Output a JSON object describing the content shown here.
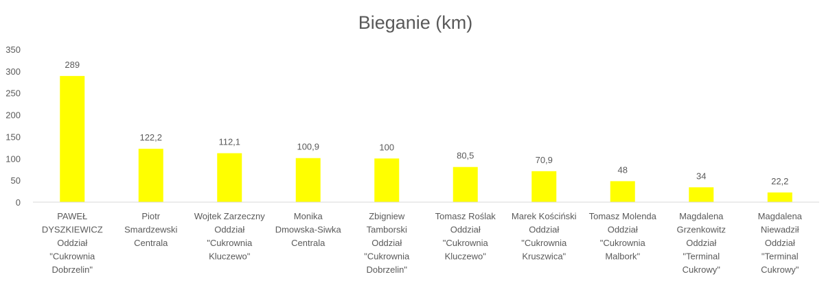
{
  "chart_data": {
    "type": "bar",
    "title": "Bieganie (km)",
    "xlabel": "",
    "ylabel": "",
    "ylim": [
      0,
      350
    ],
    "yticks": [
      0,
      50,
      100,
      150,
      200,
      250,
      300,
      350
    ],
    "grid": false,
    "legend": "none",
    "bar_color": "#FFFF00",
    "categories": [
      "PAWEŁ DYSZKIEWICZ Oddział \"Cukrownia Dobrzelin\"",
      "Piotr Smardzewski Centrala",
      "Wojtek Zarzeczny Oddział \"Cukrownia Kluczewo\"",
      "Monika Dmowska-Siwka Centrala",
      "Zbigniew Tamborski Oddział \"Cukrownia Dobrzelin\"",
      "Tomasz Roślak Oddział \"Cukrownia Kluczewo\"",
      "Marek Kościński Oddział \"Cukrownia Kruszwica\"",
      "Tomasz Molenda Oddział \"Cukrownia Malbork\"",
      "Magdalena Grzenkowitz Oddział \"Terminal Cukrowy\"",
      "Magdalena Niewadził Oddział \"Terminal Cukrowy\""
    ],
    "category_lines": [
      [
        "PAWEŁ",
        "DYSZKIEWICZ",
        "Oddział",
        "\"Cukrownia",
        "Dobrzelin\""
      ],
      [
        "Piotr",
        "Smardzewski",
        "Centrala"
      ],
      [
        "Wojtek Zarzeczny",
        "Oddział",
        "\"Cukrownia",
        "Kluczewo\""
      ],
      [
        "Monika",
        "Dmowska-Siwka",
        "Centrala"
      ],
      [
        "Zbigniew",
        "Tamborski",
        "Oddział",
        "\"Cukrownia",
        "Dobrzelin\""
      ],
      [
        "Tomasz Roślak",
        "Oddział",
        "\"Cukrownia",
        "Kluczewo\""
      ],
      [
        "Marek Kościński",
        "Oddział",
        "\"Cukrownia",
        "Kruszwica\""
      ],
      [
        "Tomasz Molenda",
        "Oddział",
        "\"Cukrownia",
        "Malbork\""
      ],
      [
        "Magdalena",
        "Grzenkowitz",
        "Oddział",
        "\"Terminal",
        "Cukrowy\""
      ],
      [
        "Magdalena",
        "Niewadził",
        "Oddział",
        "\"Terminal",
        "Cukrowy\""
      ]
    ],
    "values": [
      289,
      122.2,
      112.1,
      100.9,
      100,
      80.5,
      70.9,
      48,
      34,
      22.2
    ],
    "data_labels": [
      "289",
      "122,2",
      "112,1",
      "100,9",
      "100",
      "80,5",
      "70,9",
      "48",
      "34",
      "22,2"
    ]
  }
}
